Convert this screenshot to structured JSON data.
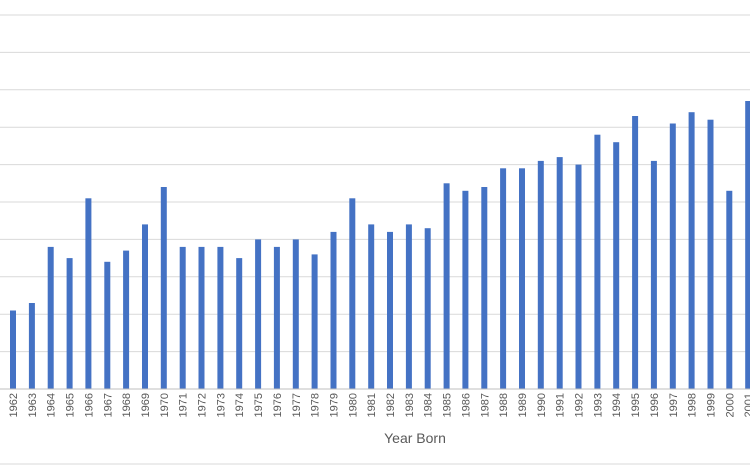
{
  "chart_data": {
    "type": "bar",
    "xlabel": "Year Born",
    "ylabel": "",
    "title": "",
    "grid": true,
    "bar_color": "#4472c4",
    "ylim": [
      0,
      10
    ],
    "categories": [
      "1962",
      "1963",
      "1964",
      "1965",
      "1966",
      "1967",
      "1968",
      "1969",
      "1970",
      "1971",
      "1972",
      "1973",
      "1974",
      "1975",
      "1976",
      "1977",
      "1978",
      "1979",
      "1980",
      "1981",
      "1982",
      "1983",
      "1984",
      "1985",
      "1986",
      "1987",
      "1988",
      "1989",
      "1990",
      "1991",
      "1992",
      "1993",
      "1994",
      "1995",
      "1996",
      "1997",
      "1998",
      "1999",
      "2000",
      "2001"
    ],
    "values": [
      2.1,
      2.3,
      3.8,
      3.5,
      5.1,
      3.4,
      3.7,
      4.4,
      5.4,
      3.8,
      3.8,
      3.8,
      3.5,
      4.0,
      3.8,
      4.0,
      3.6,
      4.2,
      5.1,
      4.4,
      4.2,
      4.4,
      4.3,
      5.5,
      5.3,
      5.4,
      5.9,
      5.9,
      6.1,
      6.2,
      6.0,
      6.8,
      6.6,
      7.3,
      6.1,
      7.1,
      7.4,
      7.2,
      5.3,
      7.7
    ]
  }
}
